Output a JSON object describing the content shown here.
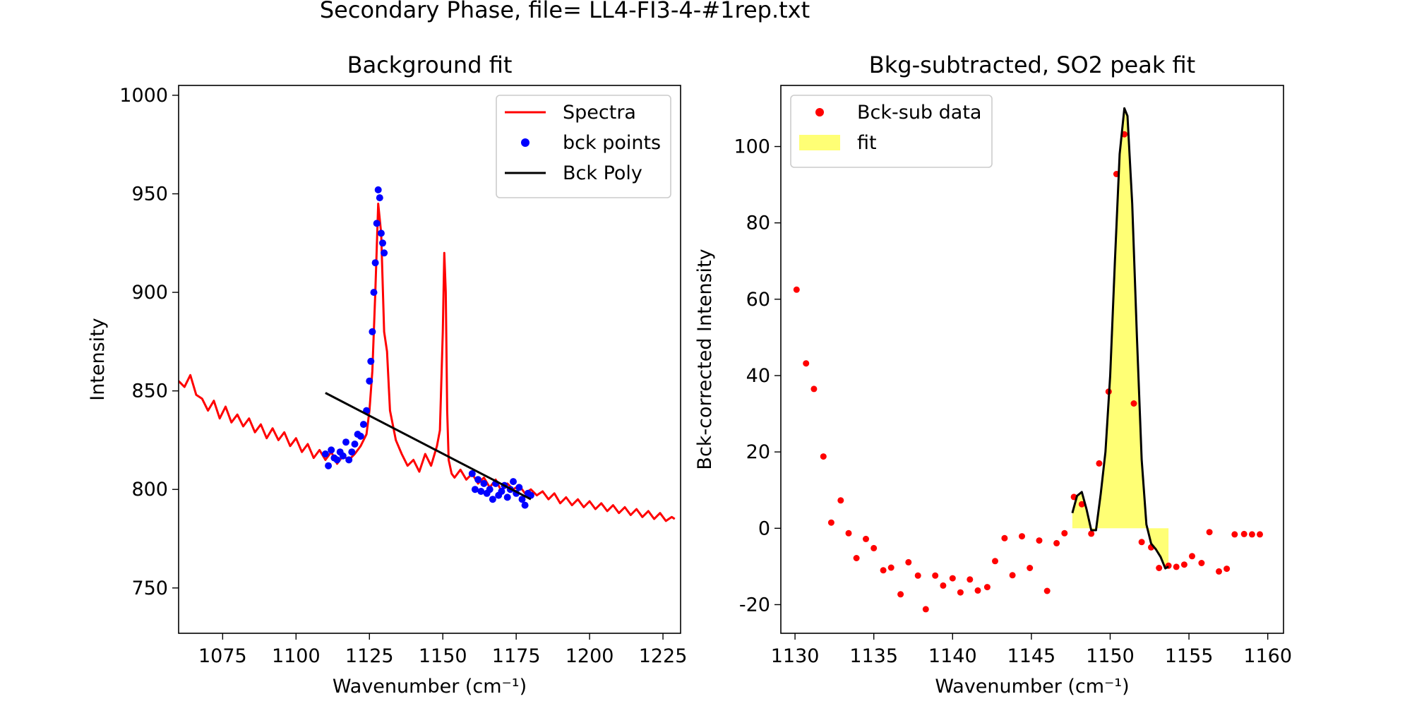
{
  "figure": {
    "suptitle": "Secondary Phase, file= LL4-FI3-4-#1rep.txt"
  },
  "colors": {
    "spectra": "#ff0000",
    "bck_points": "#0000ff",
    "bck_poly": "#000000",
    "bck_sub_data": "#ff0000",
    "fit_fill": "#ffff66",
    "fit_line": "#000000"
  },
  "chart_data": [
    {
      "type": "line",
      "title": "Background fit",
      "xlabel": "Wavenumber (cm⁻¹)",
      "ylabel": "Intensity",
      "xlim": [
        1060,
        1231
      ],
      "ylim": [
        727,
        1005
      ],
      "xticks": [
        1075,
        1100,
        1125,
        1150,
        1175,
        1200,
        1225
      ],
      "yticks": [
        750,
        800,
        850,
        900,
        950,
        1000
      ],
      "legend_position": "top-right",
      "legend": [
        {
          "label": "Spectra",
          "kind": "line",
          "color": "#ff0000"
        },
        {
          "label": "bck points",
          "kind": "marker",
          "color": "#0000ff"
        },
        {
          "label": "Bck Poly",
          "kind": "line",
          "color": "#000000"
        }
      ],
      "series": [
        {
          "name": "Spectra",
          "kind": "line",
          "color": "#ff0000",
          "x": [
            1060,
            1062,
            1064,
            1066,
            1068,
            1070,
            1072,
            1074,
            1076,
            1078,
            1080,
            1082,
            1084,
            1086,
            1088,
            1090,
            1092,
            1094,
            1096,
            1098,
            1100,
            1102,
            1104,
            1106,
            1108,
            1110,
            1112,
            1114,
            1116,
            1118,
            1120,
            1122,
            1124,
            1125,
            1126,
            1127,
            1128,
            1129,
            1130,
            1131,
            1132,
            1134,
            1136,
            1138,
            1140,
            1142,
            1144,
            1146,
            1148,
            1149,
            1150,
            1150.5,
            1151,
            1151.5,
            1152,
            1153,
            1154,
            1156,
            1158,
            1160,
            1162,
            1164,
            1166,
            1168,
            1170,
            1172,
            1174,
            1176,
            1178,
            1180,
            1182,
            1184,
            1186,
            1188,
            1190,
            1192,
            1194,
            1196,
            1198,
            1200,
            1202,
            1204,
            1206,
            1208,
            1210,
            1212,
            1214,
            1216,
            1218,
            1220,
            1222,
            1224,
            1226,
            1228,
            1229
          ],
          "y": [
            855,
            852,
            858,
            848,
            846,
            840,
            845,
            836,
            842,
            834,
            838,
            832,
            836,
            829,
            833,
            826,
            831,
            825,
            829,
            822,
            826,
            819,
            823,
            816,
            820,
            815,
            819,
            813,
            817,
            815,
            818,
            822,
            828,
            840,
            860,
            900,
            945,
            930,
            880,
            870,
            840,
            825,
            818,
            812,
            815,
            809,
            818,
            812,
            822,
            830,
            880,
            920,
            900,
            840,
            815,
            808,
            806,
            810,
            805,
            808,
            803,
            806,
            801,
            805,
            799,
            803,
            800,
            802,
            798,
            800,
            797,
            799,
            795,
            798,
            793,
            796,
            792,
            795,
            791,
            794,
            790,
            793,
            789,
            792,
            788,
            791,
            787,
            790,
            786,
            789,
            785,
            788,
            784,
            786,
            785
          ]
        },
        {
          "name": "bck points",
          "kind": "marker",
          "color": "#0000ff",
          "x": [
            1110,
            1111,
            1112,
            1113,
            1114,
            1115,
            1116,
            1117,
            1118,
            1119,
            1120,
            1121,
            1122,
            1123,
            1124,
            1125,
            1125.5,
            1126,
            1126.5,
            1127,
            1127.5,
            1128,
            1128.5,
            1129,
            1129.5,
            1130,
            1160,
            1161,
            1162,
            1163,
            1164,
            1165,
            1166,
            1167,
            1168,
            1169,
            1170,
            1171,
            1172,
            1173,
            1174,
            1175,
            1176,
            1177,
            1178,
            1179,
            1180
          ],
          "y": [
            818,
            812,
            820,
            816,
            815,
            819,
            817,
            824,
            815,
            819,
            823,
            828,
            827,
            833,
            840,
            855,
            865,
            880,
            900,
            915,
            935,
            952,
            948,
            930,
            925,
            920,
            808,
            800,
            805,
            799,
            803,
            798,
            800,
            795,
            803,
            797,
            799,
            802,
            796,
            800,
            804,
            798,
            801,
            795,
            792,
            798,
            797
          ]
        },
        {
          "name": "Bck Poly",
          "kind": "line",
          "color": "#000000",
          "x": [
            1110,
            1180
          ],
          "y": [
            849,
            795
          ]
        }
      ]
    },
    {
      "type": "scatter",
      "title": "Bkg-subtracted, SO2 peak fit",
      "xlabel": "Wavenumber (cm⁻¹)",
      "ylabel": "Bck-corrected Intensity",
      "xlim": [
        1129.1,
        1161.0
      ],
      "ylim": [
        -27.5,
        116.0
      ],
      "xticks": [
        1130,
        1135,
        1140,
        1145,
        1150,
        1155,
        1160
      ],
      "yticks": [
        -20,
        0,
        20,
        40,
        60,
        80,
        100
      ],
      "legend_position": "top-left",
      "legend": [
        {
          "label": "Bck-sub data",
          "kind": "marker",
          "color": "#ff0000"
        },
        {
          "label": "fit",
          "kind": "patch",
          "color": "#ffff66"
        }
      ],
      "series": [
        {
          "name": "Bck-sub data",
          "kind": "marker",
          "color": "#ff0000",
          "x": [
            1130.1,
            1130.7,
            1131.2,
            1131.8,
            1132.3,
            1132.9,
            1133.4,
            1133.9,
            1134.5,
            1135.0,
            1135.6,
            1136.1,
            1136.7,
            1137.2,
            1137.8,
            1138.3,
            1138.9,
            1139.4,
            1140.0,
            1140.5,
            1141.1,
            1141.6,
            1142.2,
            1142.7,
            1143.3,
            1143.8,
            1144.4,
            1144.9,
            1145.5,
            1146.0,
            1146.6,
            1147.1,
            1147.7,
            1148.2,
            1148.8,
            1149.3,
            1149.9,
            1150.4,
            1150.9,
            1151.5,
            1152.0,
            1152.6,
            1153.1,
            1153.7,
            1154.2,
            1154.7,
            1155.2,
            1155.8,
            1156.3,
            1156.9,
            1157.4,
            1157.9,
            1158.5,
            1159.0,
            1159.5
          ],
          "y": [
            62.5,
            43.2,
            36.5,
            18.8,
            1.5,
            7.3,
            -1.3,
            -7.8,
            -2.8,
            -5.2,
            -11.0,
            -10.3,
            -17.3,
            -8.9,
            -12.4,
            -21.2,
            -12.4,
            -15.0,
            -13.1,
            -16.8,
            -13.4,
            -16.3,
            -15.4,
            -8.6,
            -2.6,
            -12.3,
            -2.1,
            -10.4,
            -3.2,
            -16.4,
            -3.9,
            -1.3,
            8.2,
            6.3,
            -1.4,
            17.0,
            35.8,
            92.8,
            103.2,
            32.7,
            -3.6,
            -5.0,
            -10.4,
            -9.8,
            -10.1,
            -9.5,
            -7.3,
            -9.1,
            -1.0,
            -11.3,
            -10.6,
            -1.6,
            -1.5,
            -1.6,
            -1.6
          ]
        },
        {
          "name": "fit",
          "kind": "area",
          "color": "#ffff66",
          "line_color": "#000000",
          "x": [
            1147.6,
            1147.9,
            1148.2,
            1148.5,
            1148.8,
            1149.1,
            1149.4,
            1149.7,
            1150.0,
            1150.3,
            1150.6,
            1150.9,
            1151.1,
            1151.4,
            1151.7,
            1152.0,
            1152.3,
            1152.6,
            1152.9,
            1153.2,
            1153.5,
            1153.7
          ],
          "y": [
            4.0,
            8.5,
            9.5,
            5.0,
            -0.5,
            -0.5,
            9.0,
            20.0,
            40.0,
            70.0,
            98.0,
            110.0,
            108.0,
            85.0,
            50.0,
            18.0,
            1.0,
            -4.0,
            -5.5,
            -7.5,
            -10.5,
            -10.0
          ]
        }
      ]
    }
  ]
}
